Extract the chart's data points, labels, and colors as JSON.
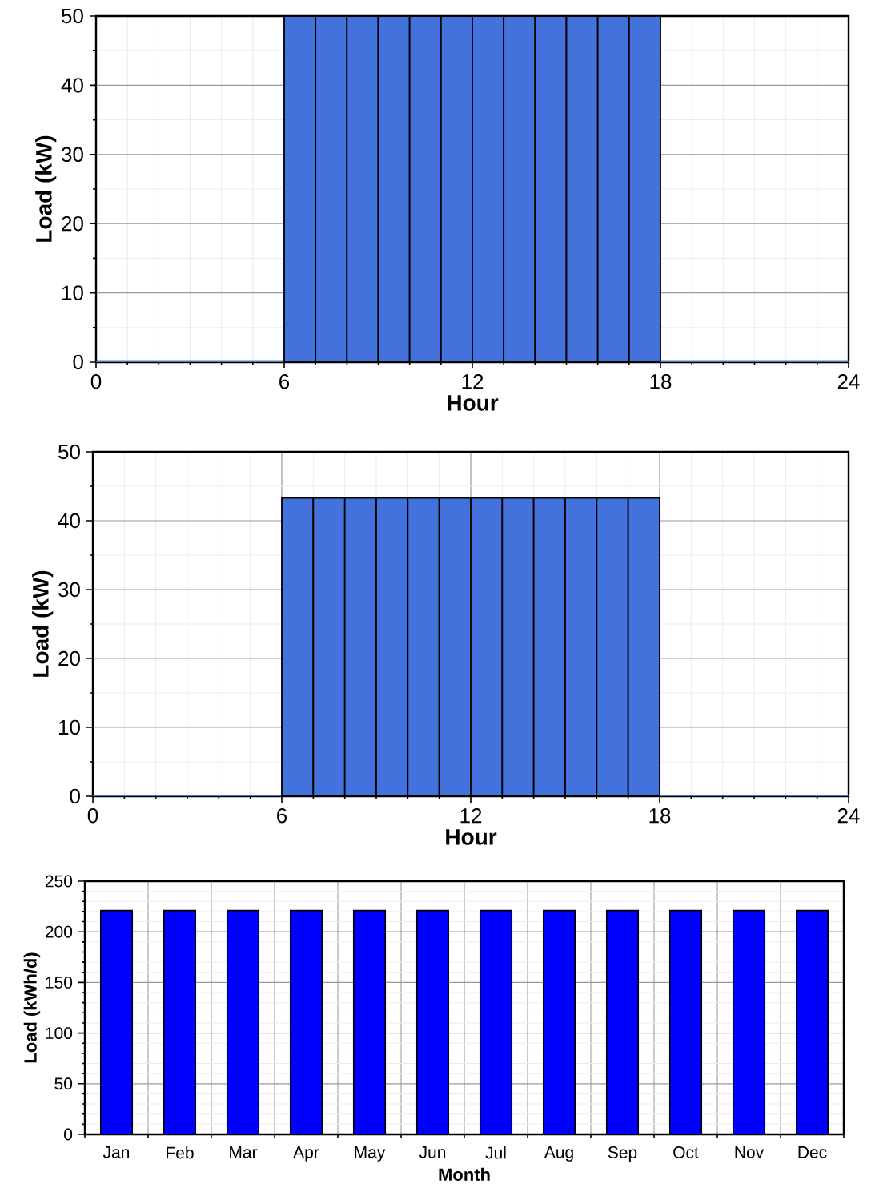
{
  "chart_data": [
    {
      "type": "histogram",
      "xlabel": "Hour",
      "ylabel": "Load (kW)",
      "bins": [
        0,
        1,
        2,
        3,
        4,
        5,
        6,
        7,
        8,
        9,
        10,
        11,
        12,
        13,
        14,
        15,
        16,
        17,
        18,
        19,
        20,
        21,
        22,
        23,
        24
      ],
      "values": [
        0,
        0,
        0,
        0,
        0,
        0,
        50,
        50,
        50,
        50,
        50,
        50,
        50,
        50,
        50,
        50,
        50,
        50,
        0,
        0,
        0,
        0,
        0,
        0
      ],
      "color": "#4472dc",
      "xlim": [
        0,
        24
      ],
      "xticks": [
        0,
        6,
        12,
        18,
        24
      ],
      "ylim": [
        0,
        50
      ],
      "yticks": [
        0,
        10,
        20,
        30,
        40,
        50
      ],
      "grid": true
    },
    {
      "type": "histogram",
      "xlabel": "Hour",
      "ylabel": "Load (kW)",
      "bins": [
        0,
        1,
        2,
        3,
        4,
        5,
        6,
        7,
        8,
        9,
        10,
        11,
        12,
        13,
        14,
        15,
        16,
        17,
        18,
        19,
        20,
        21,
        22,
        23,
        24
      ],
      "values": [
        0,
        0,
        0,
        0,
        0,
        0,
        43.3,
        43.3,
        43.3,
        43.3,
        43.3,
        43.3,
        43.3,
        43.3,
        43.3,
        43.3,
        43.3,
        43.3,
        0,
        0,
        0,
        0,
        0,
        0
      ],
      "color": "#4472dc",
      "xlim": [
        0,
        24
      ],
      "xticks": [
        0,
        6,
        12,
        18,
        24
      ],
      "ylim": [
        0,
        50
      ],
      "yticks": [
        0,
        10,
        20,
        30,
        40,
        50
      ],
      "grid": true
    },
    {
      "type": "bar",
      "xlabel": "Month",
      "ylabel": "Load (kWh/d)",
      "categories": [
        "Jan",
        "Feb",
        "Mar",
        "Apr",
        "May",
        "Jun",
        "Jul",
        "Aug",
        "Sep",
        "Oct",
        "Nov",
        "Dec"
      ],
      "values": [
        221,
        221,
        221,
        221,
        221,
        221,
        221,
        221,
        221,
        221,
        221,
        221
      ],
      "color": "#0000ff",
      "ylim": [
        0,
        250
      ],
      "yticks": [
        0,
        50,
        100,
        150,
        200,
        250
      ],
      "grid": true
    }
  ]
}
